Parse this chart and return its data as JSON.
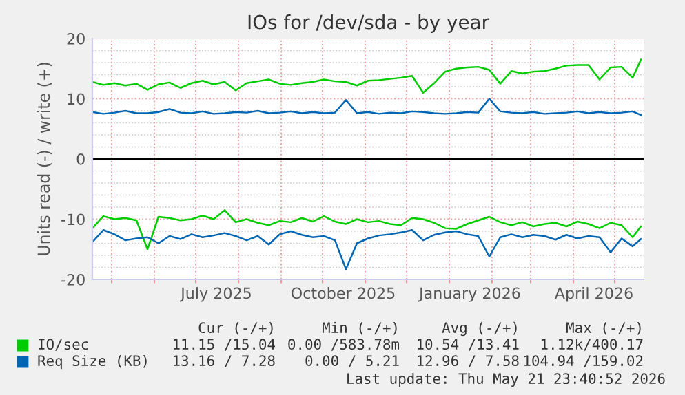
{
  "chart_data": {
    "type": "line",
    "title": "IOs for /dev/sda - by year",
    "ylabel": "Units read (-) / write (+)",
    "x": [
      "2025-04-17",
      "2025-04-25",
      "2025-05-03",
      "2025-05-11",
      "2025-05-19",
      "2025-05-27",
      "2025-06-04",
      "2025-06-12",
      "2025-06-20",
      "2025-06-28",
      "2025-07-06",
      "2025-07-14",
      "2025-07-22",
      "2025-07-30",
      "2025-08-07",
      "2025-08-15",
      "2025-08-23",
      "2025-08-31",
      "2025-09-08",
      "2025-09-16",
      "2025-09-24",
      "2025-10-02",
      "2025-10-10",
      "2025-10-18",
      "2025-10-26",
      "2025-11-03",
      "2025-11-11",
      "2025-11-19",
      "2025-11-27",
      "2025-12-05",
      "2025-12-13",
      "2025-12-21",
      "2025-12-29",
      "2026-01-06",
      "2026-01-14",
      "2026-01-22",
      "2026-01-30",
      "2026-02-07",
      "2026-02-15",
      "2026-02-23",
      "2026-03-03",
      "2026-03-11",
      "2026-03-19",
      "2026-03-27",
      "2026-04-04",
      "2026-04-12",
      "2026-04-20",
      "2026-04-28",
      "2026-05-06",
      "2026-05-14",
      "2026-05-20"
    ],
    "series": [
      {
        "name": "IO/sec",
        "color": "#00cc00",
        "values": [
          12.8,
          12.3,
          12.6,
          12.2,
          12.5,
          11.5,
          12.4,
          12.7,
          11.8,
          12.6,
          13.0,
          12.4,
          12.8,
          11.4,
          12.6,
          12.9,
          13.2,
          12.5,
          12.3,
          12.6,
          12.8,
          13.2,
          12.9,
          12.8,
          12.2,
          13.0,
          13.1,
          13.3,
          13.5,
          13.8,
          11.0,
          12.6,
          14.5,
          15.0,
          15.2,
          15.3,
          14.8,
          12.5,
          14.6,
          14.2,
          14.5,
          14.6,
          15.0,
          15.5,
          15.6,
          15.6,
          13.2,
          15.2,
          15.3,
          13.5,
          16.5
        ]
      },
      {
        "color": "#00cc00",
        "values": [
          -11.5,
          -9.5,
          -10.0,
          -9.8,
          -10.2,
          -15.0,
          -9.6,
          -9.8,
          -10.2,
          -10.0,
          -9.4,
          -10.0,
          -8.5,
          -10.5,
          -10.0,
          -10.6,
          -11.0,
          -10.3,
          -10.5,
          -9.8,
          -10.4,
          -9.5,
          -10.4,
          -10.8,
          -10.0,
          -10.5,
          -10.3,
          -10.8,
          -11.0,
          -9.8,
          -10.0,
          -10.6,
          -11.5,
          -11.6,
          -10.8,
          -10.2,
          -9.6,
          -10.5,
          -11.0,
          -10.5,
          -11.2,
          -10.8,
          -10.6,
          -11.2,
          -10.4,
          -10.8,
          -11.5,
          -10.6,
          -11.0,
          -13.0,
          -11.2
        ]
      },
      {
        "name": "Req Size (KB)",
        "color": "#0066b3",
        "values": [
          7.8,
          7.5,
          7.7,
          8.0,
          7.6,
          7.6,
          7.8,
          8.3,
          7.7,
          7.6,
          7.9,
          7.5,
          7.6,
          7.8,
          7.7,
          8.0,
          7.6,
          7.7,
          7.9,
          7.6,
          7.8,
          7.6,
          7.7,
          9.8,
          7.6,
          7.8,
          7.5,
          7.7,
          7.6,
          7.9,
          7.8,
          7.6,
          7.5,
          7.6,
          7.8,
          7.7,
          10.0,
          7.9,
          7.7,
          7.6,
          7.8,
          7.5,
          7.6,
          7.7,
          7.9,
          7.6,
          7.8,
          7.6,
          7.7,
          7.9,
          7.3
        ]
      },
      {
        "color": "#0066b3",
        "values": [
          -13.8,
          -11.8,
          -12.5,
          -13.5,
          -13.2,
          -13.0,
          -14.0,
          -12.8,
          -13.3,
          -12.5,
          -13.0,
          -12.7,
          -12.3,
          -12.8,
          -13.5,
          -12.8,
          -14.2,
          -12.5,
          -12.0,
          -12.6,
          -13.0,
          -12.8,
          -13.5,
          -18.3,
          -14.0,
          -13.2,
          -12.7,
          -12.5,
          -12.2,
          -11.8,
          -13.5,
          -12.6,
          -12.2,
          -12.0,
          -12.5,
          -12.8,
          -16.2,
          -13.0,
          -12.5,
          -13.0,
          -12.6,
          -12.8,
          -13.4,
          -12.6,
          -13.2,
          -12.8,
          -13.0,
          -15.5,
          -13.2,
          -14.5,
          -13.3
        ]
      }
    ],
    "xlim": [
      "2025-04-17",
      "2026-05-22"
    ],
    "xticks": [
      {
        "value": "2025-05-01",
        "label": null
      },
      {
        "value": "2025-06-01",
        "label": null
      },
      {
        "value": "2025-07-01",
        "label": null
      },
      {
        "value": "2025-08-01",
        "label": null
      },
      {
        "value": "2025-09-01",
        "label": null
      },
      {
        "value": "2025-10-01",
        "label": null
      },
      {
        "value": "2025-11-01",
        "label": null
      },
      {
        "value": "2025-12-01",
        "label": null
      },
      {
        "value": "2026-01-01",
        "label": null
      },
      {
        "value": "2026-02-01",
        "label": null
      },
      {
        "value": "2026-03-01",
        "label": null
      },
      {
        "value": "2026-04-01",
        "label": null
      },
      {
        "value": "2026-05-01",
        "label": null
      },
      {
        "value": "2025-07-16",
        "label": "July 2025"
      },
      {
        "value": "2025-10-16",
        "label": "October 2025"
      },
      {
        "value": "2026-01-16",
        "label": "January 2026"
      },
      {
        "value": "2026-04-16",
        "label": "April 2026"
      }
    ],
    "ylim": [
      -20,
      20
    ],
    "yticks": [
      -20,
      {
        "value": -18,
        "label": null
      },
      {
        "value": -16,
        "label": null
      },
      {
        "value": -14,
        "label": null
      },
      {
        "value": -12,
        "label": null
      },
      -10,
      {
        "value": -8,
        "label": null
      },
      {
        "value": -6,
        "label": null
      },
      {
        "value": -4,
        "label": null
      },
      {
        "value": -2,
        "label": null
      },
      0,
      {
        "value": 2,
        "label": null
      },
      {
        "value": 4,
        "label": null
      },
      {
        "value": 6,
        "label": null
      },
      {
        "value": 8,
        "label": null
      },
      10,
      {
        "value": 12,
        "label": null
      },
      {
        "value": 14,
        "label": null
      },
      {
        "value": 16,
        "label": null
      },
      {
        "value": 18,
        "label": null
      },
      20
    ],
    "ref_lines": [
      {
        "axis": "y",
        "value": 0,
        "color": "#000000"
      }
    ],
    "grid": true,
    "legend": "bottom",
    "line_style": "solid",
    "annotations": [
      "Cur (-/+)",
      "Min (-/+)",
      "Avg (-/+)",
      "Max (-/+)",
      "11.15 /15.04",
      "0.00 /583.78m",
      "10.54 /13.41",
      "1.12k/400.17",
      "13.16 / 7.28",
      "0.00 / 5.21",
      "12.96 / 7.58",
      "104.94 /159.02",
      "Last update: Thu May 21 23:40:52 2026"
    ]
  }
}
